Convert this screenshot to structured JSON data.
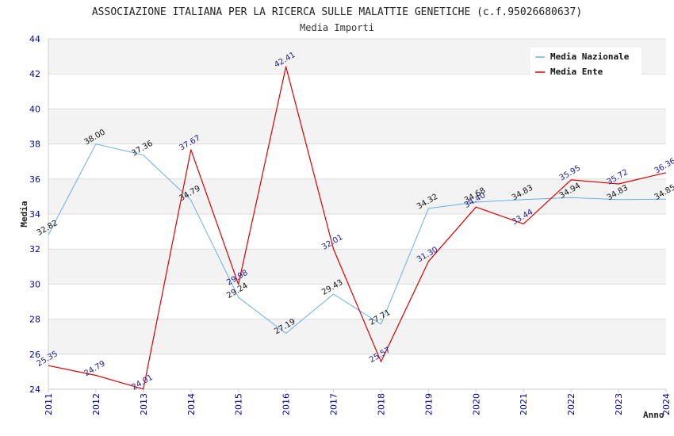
{
  "chart_data": {
    "type": "line",
    "title": "ASSOCIAZIONE ITALIANA PER LA RICERCA SULLE MALATTIE GENETICHE (c.f.95026680637)",
    "subtitle": "Media Importi",
    "xlabel": "Anno",
    "ylabel": "Media",
    "ylim": [
      24,
      44
    ],
    "yticks": [
      "24",
      "26",
      "28",
      "30",
      "32",
      "34",
      "36",
      "38",
      "40",
      "42",
      "44"
    ],
    "categories": [
      "2011",
      "2012",
      "2013",
      "2014",
      "2015",
      "2016",
      "2017",
      "2018",
      "2019",
      "2020",
      "2021",
      "2022",
      "2023",
      "2024"
    ],
    "series": [
      {
        "name": "Media Nazionale",
        "color": "#6aaee8",
        "values": [
          32.82,
          38.0,
          37.36,
          34.79,
          29.24,
          27.19,
          29.43,
          27.71,
          34.32,
          34.68,
          34.83,
          34.94,
          34.83,
          34.85
        ],
        "labels": [
          "32.82",
          "38.00",
          "37.36",
          "34.79",
          "29.24",
          "27.19",
          "29.43",
          "27.71",
          "34.32",
          "34.68",
          "34.83",
          "34.94",
          "34.83",
          "34.85"
        ]
      },
      {
        "name": "Media Ente",
        "color": "#dd0000",
        "values": [
          25.35,
          24.79,
          24.01,
          37.67,
          29.98,
          42.41,
          32.01,
          25.57,
          31.3,
          34.4,
          33.44,
          35.95,
          35.72,
          36.36
        ],
        "labels": [
          "25.35",
          "24.79",
          "24.01",
          "37.67",
          "29.98",
          "42.41",
          "32.01",
          "25.57",
          "31.30",
          "34.40",
          "33.44",
          "35.95",
          "35.72",
          "36.36"
        ]
      }
    ],
    "legend_position": "top-right",
    "grid": true
  }
}
